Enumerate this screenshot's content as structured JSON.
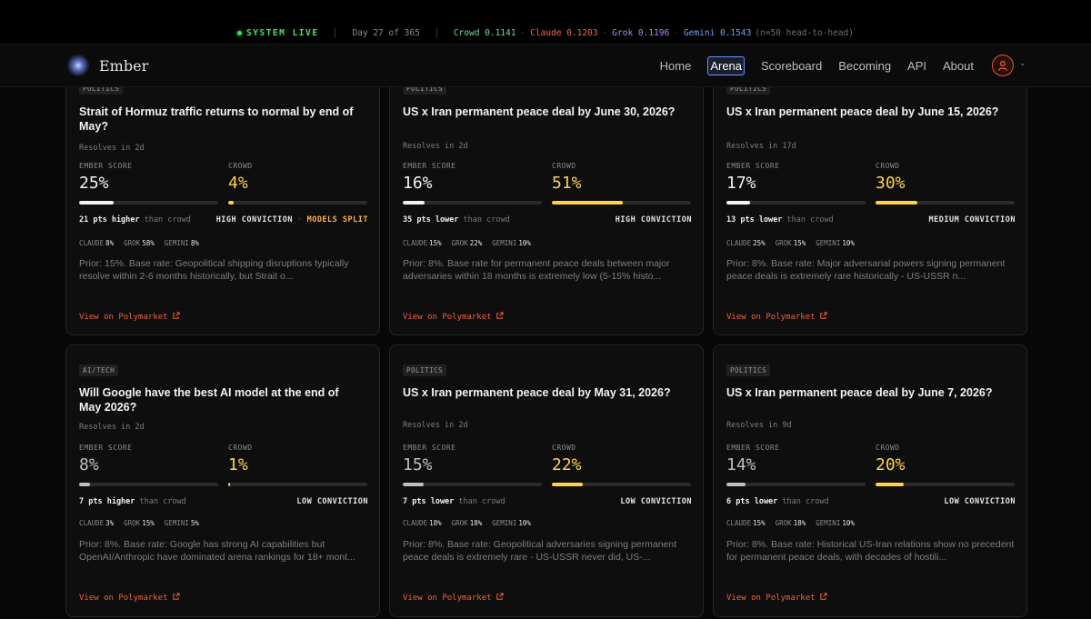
{
  "ticker": {
    "status": "SYSTEM LIVE",
    "day": "Day 27 of 365",
    "crowd": "Crowd 0.1141",
    "claude": "Claude 0.1203",
    "grok": "Grok 0.1196",
    "gemini": "Gemini 0.1543",
    "note": "(n=50 head-to-head)"
  },
  "nav": {
    "brand": "Ember",
    "links": [
      "Home",
      "Arena",
      "Scoreboard",
      "Becoming",
      "API",
      "About"
    ],
    "active": "Arena"
  },
  "labels": {
    "ember_score": "EMBER SCORE",
    "crowd": "CROWD",
    "than_crowd": "than crowd",
    "claude": "CLAUDE",
    "grok": "GROK",
    "gemini": "GEMINI",
    "view_link": "View on Polymarket",
    "models_split": "MODELS SPLIT"
  },
  "colors": {
    "accent": "#f06040",
    "crowd": "#ffd24a",
    "nav_active": "#6f8dff"
  },
  "cards": [
    {
      "tag": "POLITICS",
      "title": "Strait of Hormuz traffic returns to normal by end of May?",
      "resolves": "Resolves in 2d",
      "ember": "25%",
      "ember_value": 25,
      "crowd": "4%",
      "crowd_value": 4,
      "diff": "21 pts higher",
      "conviction": "HIGH CONVICTION",
      "split": true,
      "claude": "8%",
      "grok": "58%",
      "gemini": "8%",
      "prior": "Prior: 15%. Base rate: Geopolitical shipping disruptions typically resolve within 2-6 months historically, but Strait o..."
    },
    {
      "tag": "POLITICS",
      "title": "US x Iran permanent peace deal by June 30, 2026?",
      "resolves": "Resolves in 2d",
      "ember": "16%",
      "ember_value": 16,
      "crowd": "51%",
      "crowd_value": 51,
      "diff": "35 pts lower",
      "conviction": "HIGH CONVICTION",
      "split": false,
      "claude": "15%",
      "grok": "22%",
      "gemini": "10%",
      "prior": "Prior: 8%. Base rate for permanent peace deals between major adversaries within 18 months is extremely low (5-15% histo..."
    },
    {
      "tag": "POLITICS",
      "title": "US x Iran permanent peace deal by June 15, 2026?",
      "resolves": "Resolves in 17d",
      "ember": "17%",
      "ember_value": 17,
      "crowd": "30%",
      "crowd_value": 30,
      "diff": "13 pts lower",
      "conviction": "MEDIUM CONVICTION",
      "split": false,
      "claude": "25%",
      "grok": "15%",
      "gemini": "10%",
      "prior": "Prior: 8%. Base rate: Major adversarial powers signing permanent peace deals is extremely rare historically - US-USSR n..."
    },
    {
      "tag": "AI/TECH",
      "title": "Will Google have the best AI model at the end of May 2026?",
      "resolves": "Resolves in 2d",
      "ember": "8%",
      "ember_value": 8,
      "crowd": "1%",
      "crowd_value": 1,
      "diff": "7 pts higher",
      "conviction": "LOW CONVICTION",
      "split": false,
      "claude": "3%",
      "grok": "15%",
      "gemini": "5%",
      "prior": "Prior: 8%. Base rate: Google has strong AI capabilities but OpenAI/Anthropic have dominated arena rankings for 18+ mont..."
    },
    {
      "tag": "POLITICS",
      "title": "US x Iran permanent peace deal by May 31, 2026?",
      "resolves": "Resolves in 2d",
      "ember": "15%",
      "ember_value": 15,
      "crowd": "22%",
      "crowd_value": 22,
      "diff": "7 pts lower",
      "conviction": "LOW CONVICTION",
      "split": false,
      "claude": "18%",
      "grok": "18%",
      "gemini": "10%",
      "prior": "Prior: 8%. Base rate: Geopolitical adversaries signing permanent peace deals is extremely rare - US-USSR never did, US-..."
    },
    {
      "tag": "POLITICS",
      "title": "US x Iran permanent peace deal by June 7, 2026?",
      "resolves": "Resolves in 9d",
      "ember": "14%",
      "ember_value": 14,
      "crowd": "20%",
      "crowd_value": 20,
      "diff": "6 pts lower",
      "conviction": "LOW CONVICTION",
      "split": false,
      "claude": "15%",
      "grok": "18%",
      "gemini": "10%",
      "prior": "Prior: 8%. Base rate: Historical US-Iran relations show no precedent for permanent peace deals, with decades of hostili..."
    }
  ]
}
